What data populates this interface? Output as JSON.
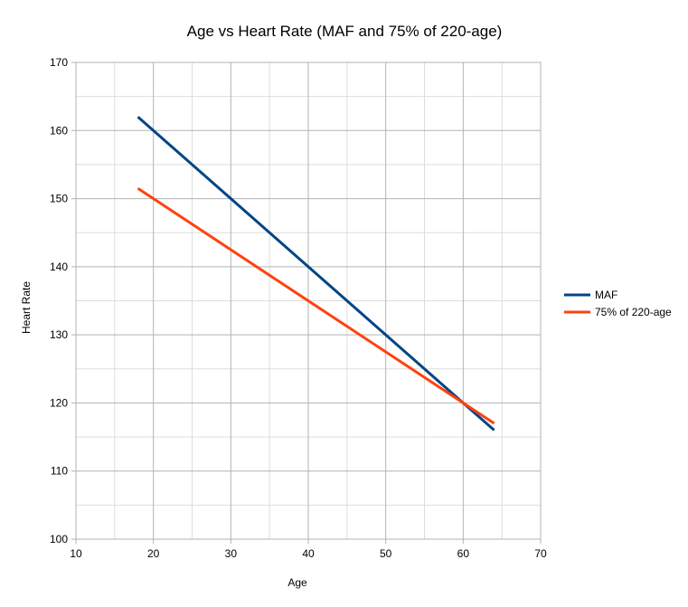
{
  "chart_data": {
    "type": "line",
    "title": "Age vs Heart Rate (MAF and 75% of 220-age)",
    "xlabel": "Age",
    "ylabel": "Heart Rate",
    "xlim": [
      10,
      70
    ],
    "ylim": [
      100,
      170
    ],
    "xticks": [
      10,
      20,
      30,
      40,
      50,
      60,
      70
    ],
    "yticks": [
      100,
      110,
      120,
      130,
      140,
      150,
      160,
      170
    ],
    "minor_grid": true,
    "grid": true,
    "legend_position": "right",
    "series": [
      {
        "name": "MAF",
        "color": "#004586",
        "x": [
          18,
          64
        ],
        "y": [
          162,
          116
        ]
      },
      {
        "name": "75% of 220-age",
        "color": "#ff420e",
        "x": [
          18,
          64
        ],
        "y": [
          151.5,
          117
        ]
      }
    ]
  }
}
